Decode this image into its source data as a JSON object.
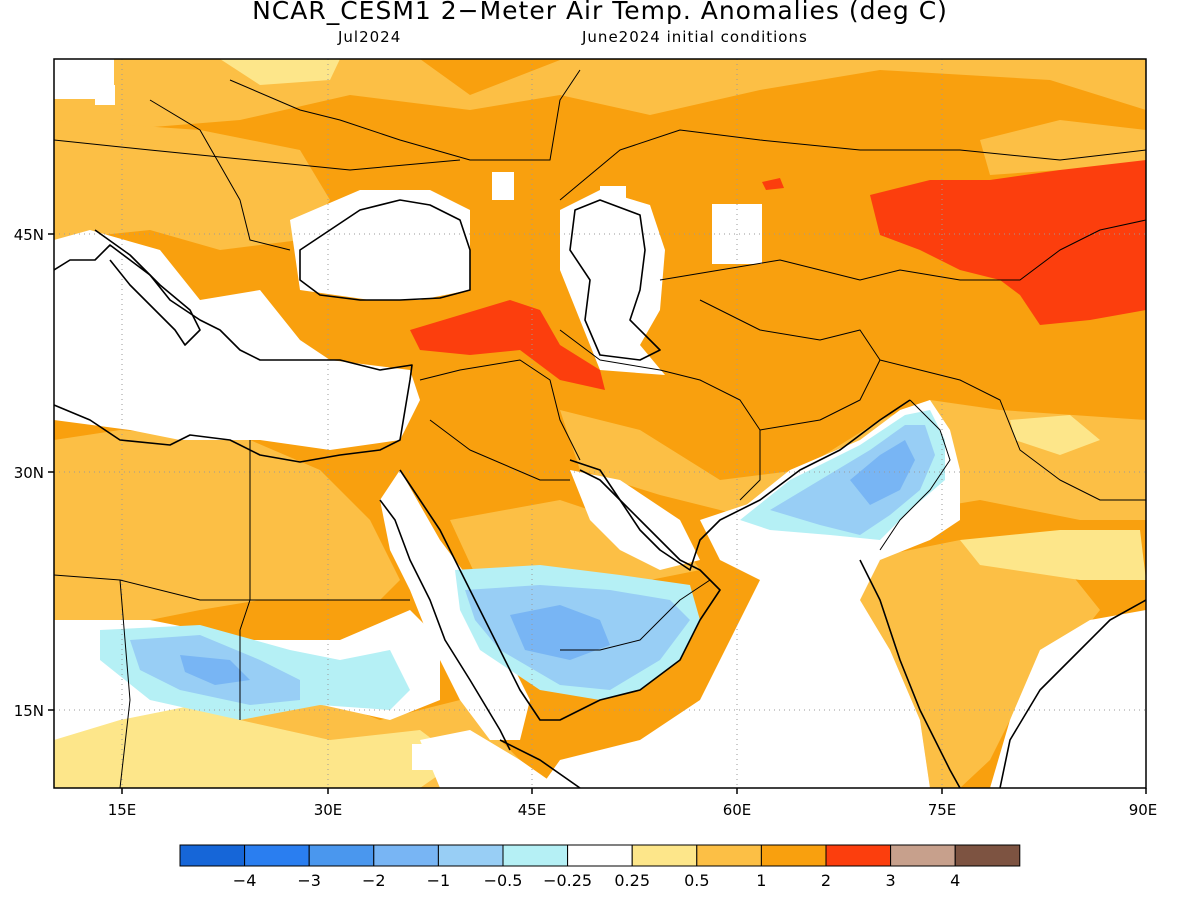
{
  "header": {
    "title": "NCAR_CESM1 2−Meter Air Temp. Anomalies (deg C)",
    "valid_month": "Jul2024",
    "init_conditions": "June2024 initial conditions"
  },
  "map": {
    "lon_range": [
      10,
      90
    ],
    "lat_range": [
      10,
      55
    ],
    "lon_ticks": [
      "15E",
      "30E",
      "45E",
      "60E",
      "75E",
      "90E"
    ],
    "lat_ticks": [
      "45N",
      "30N",
      "15N"
    ],
    "grid": "dotted"
  },
  "colorbar": {
    "colors": [
      "#1666d8",
      "#2a7ef0",
      "#4a97ee",
      "#78b5f4",
      "#98cef5",
      "#b5f0f5",
      "#ffffff",
      "#fde68a",
      "#fcbf45",
      "#f9a00e",
      "#fc3e0d",
      "#c7a08c",
      "#7d5341"
    ],
    "labels": [
      "−4",
      "−3",
      "−2",
      "−1",
      "−0.5",
      "−0.25",
      "0.25",
      "0.5",
      "1",
      "2",
      "3",
      "4"
    ]
  },
  "palette": {
    "white": "#ffffff",
    "yellow": "#fde68a",
    "light_orange": "#fcbf45",
    "orange": "#f9a00e",
    "red": "#fc3e0d",
    "light_blue": "#b5f0f5",
    "blue1": "#98cef5",
    "blue2": "#78b5f4"
  }
}
